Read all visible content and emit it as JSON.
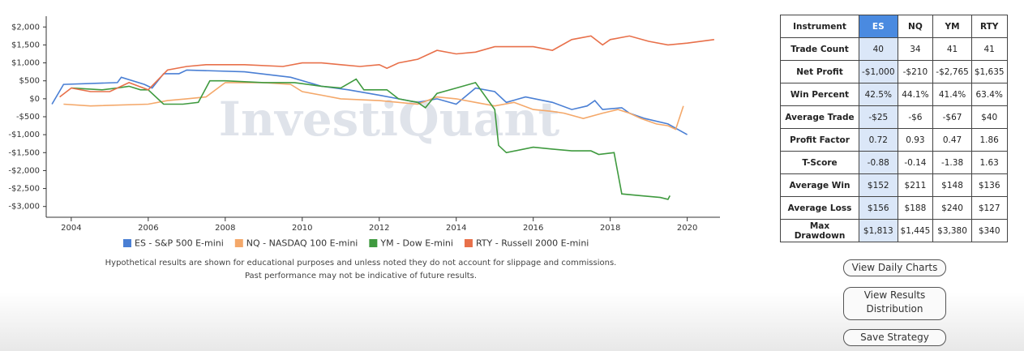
{
  "chart_data": {
    "type": "line",
    "watermark": "InvestiQuant",
    "xlim": [
      2003.35,
      2020.85
    ],
    "xticks": [
      2004,
      2006,
      2008,
      2010,
      2012,
      2014,
      2016,
      2018,
      2020
    ],
    "ylim": [
      -3300,
      2300
    ],
    "yticks": [
      {
        "value": -3000,
        "label": "-$3,000"
      },
      {
        "value": -2500,
        "label": "-$2,500"
      },
      {
        "value": -2000,
        "label": "-$2,000"
      },
      {
        "value": -1500,
        "label": "-$1,500"
      },
      {
        "value": -1000,
        "label": "-$1,000"
      },
      {
        "value": -500,
        "label": "-$500"
      },
      {
        "value": 0,
        "label": "$0"
      },
      {
        "value": 500,
        "label": "$500"
      },
      {
        "value": 1000,
        "label": "$1,000"
      },
      {
        "value": 1500,
        "label": "$1,500"
      },
      {
        "value": 2000,
        "label": "$2,000"
      }
    ],
    "series": [
      {
        "name": "ES - S&P 500 E-mini",
        "color": "#4a7fd4",
        "x": [
          2003.5,
          2003.8,
          2005.2,
          2005.3,
          2005.9,
          2006.1,
          2006.4,
          2006.8,
          2007,
          2008.5,
          2009.7,
          2010.5,
          2011.2,
          2012,
          2012.5,
          2013,
          2013.5,
          2014,
          2014.5,
          2015,
          2015.3,
          2015.8,
          2016.5,
          2017,
          2017.4,
          2017.6,
          2017.8,
          2018.3,
          2018.5,
          2018.9,
          2019.5,
          2020
        ],
        "values": [
          -150,
          400,
          450,
          600,
          400,
          300,
          700,
          700,
          800,
          750,
          600,
          350,
          250,
          100,
          0,
          -100,
          0,
          -150,
          300,
          200,
          -100,
          50,
          -100,
          -300,
          -200,
          -50,
          -300,
          -250,
          -400,
          -550,
          -700,
          -1000
        ]
      },
      {
        "name": "NQ - NASDAQ 100 E-mini",
        "color": "#f4a86a",
        "x": [
          2003.8,
          2004.5,
          2006,
          2006.5,
          2007,
          2007.5,
          2008,
          2009,
          2009.7,
          2010,
          2010.5,
          2011,
          2012,
          2013,
          2013.5,
          2014,
          2014.5,
          2015,
          2015.5,
          2016,
          2016.5,
          2016.8,
          2017.3,
          2017.8,
          2018.2,
          2018.5,
          2018.8,
          2019.2,
          2019.5,
          2019.7,
          2019.9
        ],
        "values": [
          -150,
          -200,
          -150,
          -50,
          0,
          50,
          450,
          450,
          400,
          200,
          100,
          0,
          -50,
          -150,
          50,
          0,
          -100,
          -200,
          -100,
          -300,
          -350,
          -400,
          -550,
          -400,
          -300,
          -400,
          -550,
          -700,
          -750,
          -850,
          -200
        ]
      },
      {
        "name": "YM - Dow E-mini",
        "color": "#3f9a3f",
        "x": [
          2004,
          2004.8,
          2005.2,
          2005.5,
          2005.8,
          2006,
          2006.4,
          2006.9,
          2007.3,
          2007.6,
          2008,
          2009,
          2009.8,
          2010.5,
          2011,
          2011.4,
          2011.6,
          2012.2,
          2012.5,
          2013,
          2013.2,
          2013.5,
          2014,
          2014.5,
          2015,
          2015.1,
          2015.3,
          2016,
          2016.5,
          2017,
          2017.5,
          2017.7,
          2018.1,
          2018.3,
          2018.8,
          2019.3,
          2019.5,
          2019.55
        ],
        "values": [
          300,
          250,
          300,
          350,
          250,
          250,
          -150,
          -150,
          -100,
          500,
          500,
          450,
          450,
          350,
          300,
          550,
          250,
          250,
          0,
          -100,
          -250,
          150,
          300,
          450,
          -300,
          -1300,
          -1500,
          -1350,
          -1400,
          -1450,
          -1450,
          -1550,
          -1500,
          -2650,
          -2700,
          -2750,
          -2800,
          -2700
        ]
      },
      {
        "name": "RTY - Russell 2000 E-mini",
        "color": "#e8704a",
        "x": [
          2003.7,
          2004,
          2004.5,
          2005,
          2005.5,
          2006,
          2006.5,
          2007,
          2007.5,
          2008.5,
          2009.5,
          2010,
          2010.5,
          2011,
          2011.5,
          2012,
          2012.2,
          2012.5,
          2013,
          2013.5,
          2014,
          2014.5,
          2015,
          2016,
          2016.5,
          2017,
          2017.5,
          2017.8,
          2018,
          2018.5,
          2019,
          2019.5,
          2020,
          2020.7
        ],
        "values": [
          50,
          300,
          200,
          200,
          450,
          250,
          800,
          900,
          950,
          950,
          900,
          1000,
          1000,
          950,
          900,
          950,
          850,
          1000,
          1100,
          1350,
          1250,
          1300,
          1450,
          1450,
          1350,
          1650,
          1750,
          1500,
          1650,
          1750,
          1600,
          1500,
          1550,
          1650
        ]
      }
    ]
  },
  "disclaimer": [
    "Hypothetical results are shown for educational purposes and unless noted they do not account for slippage and commissions.",
    "Past performance may not be indicative of future results."
  ],
  "table": {
    "header": [
      "Instrument",
      "ES",
      "NQ",
      "YM",
      "RTY"
    ],
    "rows": [
      [
        "Trade Count",
        "40",
        "34",
        "41",
        "41"
      ],
      [
        "Net Profit",
        "-$1,000",
        "-$210",
        "-$2,765",
        "$1,635"
      ],
      [
        "Win Percent",
        "42.5%",
        "44.1%",
        "41.4%",
        "63.4%"
      ],
      [
        "Average Trade",
        "-$25",
        "-$6",
        "-$67",
        "$40"
      ],
      [
        "Profit Factor",
        "0.72",
        "0.93",
        "0.47",
        "1.86"
      ],
      [
        "T-Score",
        "-0.88",
        "-0.14",
        "-1.38",
        "1.63"
      ],
      [
        "Average Win",
        "$152",
        "$211",
        "$148",
        "$136"
      ],
      [
        "Average Loss",
        "$156",
        "$188",
        "$240",
        "$127"
      ],
      [
        "Max Drawdown",
        "$1,813",
        "$1,445",
        "$3,380",
        "$340"
      ]
    ]
  },
  "buttons": [
    "View Daily Charts",
    "View Results Distribution",
    "Save Strategy"
  ]
}
